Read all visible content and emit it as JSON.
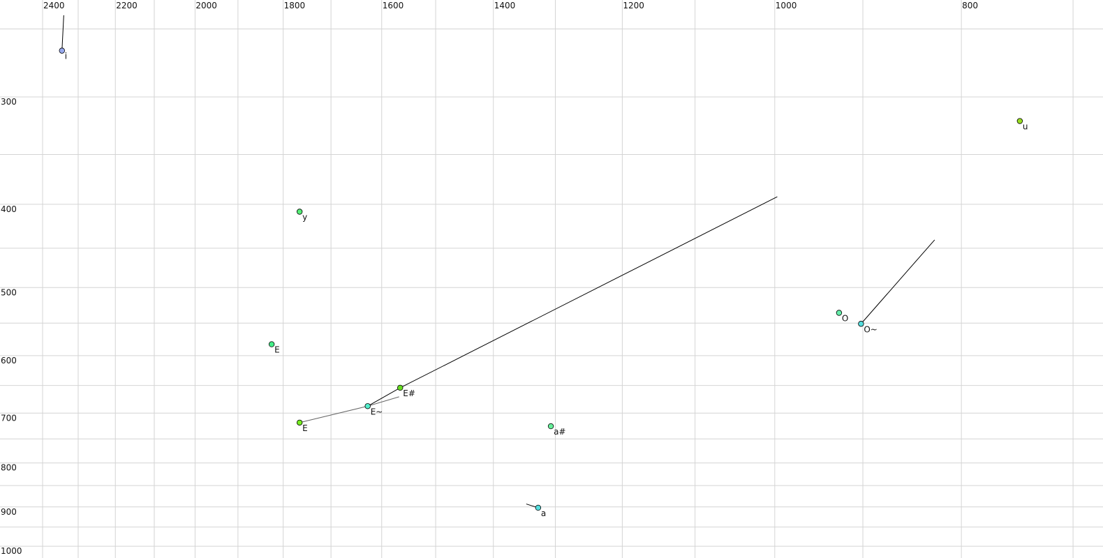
{
  "chart_data": {
    "type": "scatter",
    "title": "",
    "xlabel": "",
    "ylabel": "",
    "x_scale": "log",
    "y_scale": "log",
    "x_reversed": true,
    "xlim": [
      2400,
      700
    ],
    "ylim": [
      250,
      1000
    ],
    "grid": true,
    "x_gridlines": [
      2400,
      2300,
      2200,
      2100,
      2000,
      1900,
      1800,
      1700,
      1600,
      1500,
      1400,
      1300,
      1200,
      1100,
      1000,
      900,
      800,
      700
    ],
    "y_gridlines": [
      250,
      300,
      350,
      400,
      450,
      500,
      550,
      600,
      650,
      700,
      750,
      800,
      850,
      900,
      950,
      1000
    ],
    "x_tick_labels": [
      "2400",
      "2200",
      "2000",
      "1800",
      "1600",
      "1400",
      "1200",
      "1000",
      "800"
    ],
    "y_tick_labels": [
      "300",
      "400",
      "500",
      "600",
      "700",
      "800",
      "900",
      "1000"
    ],
    "points": [
      {
        "label": "i",
        "x": 2345,
        "y": 265,
        "color": "#99aaee"
      },
      {
        "label": "u",
        "x": 746,
        "y": 320,
        "color": "#99dd22"
      },
      {
        "label": "y",
        "x": 1765,
        "y": 408,
        "color": "#55ee77"
      },
      {
        "label": "E",
        "x": 1825,
        "y": 582,
        "color": "#44ee88"
      },
      {
        "label": "E",
        "x": 1765,
        "y": 718,
        "color": "#77ee22",
        "label_color": "#666677"
      },
      {
        "label": "E~",
        "x": 1627,
        "y": 687,
        "color": "#55eecc"
      },
      {
        "label": "E#",
        "x": 1565,
        "y": 654,
        "color": "#66dd22"
      },
      {
        "label": "a#",
        "x": 1307,
        "y": 725,
        "color": "#66ee99"
      },
      {
        "label": "a",
        "x": 1327,
        "y": 902,
        "color": "#55dddd"
      },
      {
        "label": "O",
        "x": 926,
        "y": 535,
        "color": "#66eeaa"
      },
      {
        "label": "O~",
        "x": 902,
        "y": 551,
        "color": "#55dddd"
      }
    ],
    "trajectories": [
      {
        "from": [
          2345,
          265
        ],
        "to": [
          2340,
          241
        ],
        "color": "#000000"
      },
      {
        "from": [
          1765,
          718
        ],
        "to": [
          1627,
          687
        ],
        "color": "#666666"
      },
      {
        "from": [
          1627,
          687
        ],
        "to": [
          1567,
          670
        ],
        "color": "#666666"
      },
      {
        "from": [
          1627,
          687
        ],
        "to": [
          1565,
          654
        ],
        "color": "#000000"
      },
      {
        "from": [
          1565,
          654
        ],
        "to": [
          997,
          392
        ],
        "color": "#000000"
      },
      {
        "from": [
          902,
          551
        ],
        "to": [
          826,
          440
        ],
        "color": "#000000"
      },
      {
        "from": [
          1327,
          902
        ],
        "to": [
          1346,
          893
        ],
        "color": "#000000"
      }
    ]
  }
}
